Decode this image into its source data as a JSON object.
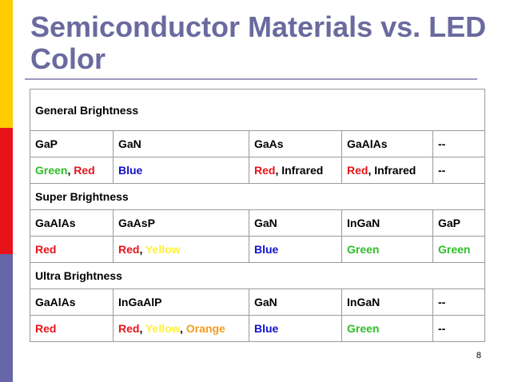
{
  "title": "Semiconductor Materials vs. LED Color",
  "page_number": "8",
  "colors": {
    "green": "#2DBE28",
    "red": "#E8131A",
    "blue": "#1111CC",
    "yellow": "#FFF13C",
    "orange": "#F39C1F",
    "title": "#6A6A9F"
  },
  "sections": {
    "general": {
      "label": "General Brightness",
      "materials": [
        "GaP",
        "GaN",
        "GaAs",
        "GaAlAs",
        "--"
      ],
      "c0": {
        "a": "Green",
        "sep": ", ",
        "b": "Red"
      },
      "c1": "Blue",
      "c2": {
        "a": "Red",
        "sep": ", ",
        "b": "Infrared"
      },
      "c3": {
        "a": "Red",
        "sep": ", ",
        "b": "Infrared"
      },
      "c4": "--"
    },
    "super": {
      "label": "Super Brightness",
      "materials": [
        "GaAlAs",
        "GaAsP",
        "GaN",
        "InGaN",
        "GaP"
      ],
      "c0": "Red",
      "c1": {
        "a": "Red",
        "sep": ", ",
        "b": "Yellow"
      },
      "c2": "Blue",
      "c3": "Green",
      "c4": "Green"
    },
    "ultra": {
      "label": "Ultra Brightness",
      "materials": [
        "GaAlAs",
        "InGaAlP",
        "GaN",
        "InGaN",
        "--"
      ],
      "c0": "Red",
      "c1": {
        "a": "Red",
        "sep1": ", ",
        "b": "Yellow",
        "sep2": ", ",
        "c": "Orange"
      },
      "c2": "Blue",
      "c3": "Green",
      "c4": "--"
    }
  }
}
